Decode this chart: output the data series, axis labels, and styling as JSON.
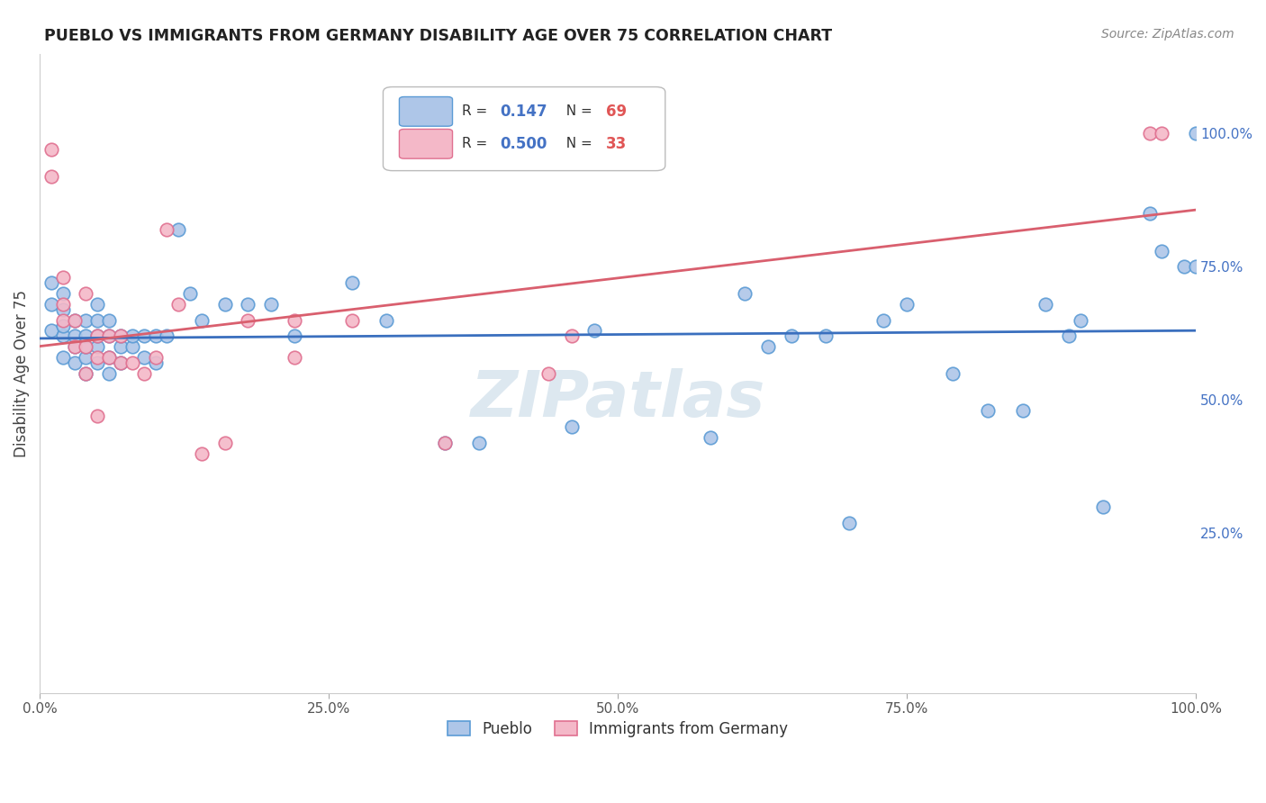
{
  "title": "PUEBLO VS IMMIGRANTS FROM GERMANY DISABILITY AGE OVER 75 CORRELATION CHART",
  "source": "Source: ZipAtlas.com",
  "ylabel": "Disability Age Over 75",
  "xlim": [
    0.0,
    1.0
  ],
  "ylim": [
    -0.05,
    1.15
  ],
  "xtick_labels": [
    "0.0%",
    "25.0%",
    "50.0%",
    "75.0%",
    "100.0%"
  ],
  "xtick_positions": [
    0.0,
    0.25,
    0.5,
    0.75,
    1.0
  ],
  "ytick_right_labels": [
    "25.0%",
    "50.0%",
    "75.0%",
    "100.0%"
  ],
  "ytick_right_positions": [
    0.25,
    0.5,
    0.75,
    1.0
  ],
  "pueblo_color_face": "#aec6e8",
  "pueblo_color_edge": "#5b9bd5",
  "germany_color_face": "#f4b8c8",
  "germany_color_edge": "#e07090",
  "pueblo_line_color": "#3a6fbe",
  "germany_line_color": "#d95f6e",
  "watermark_color": "#dde8f0",
  "pueblo_R": "0.147",
  "pueblo_N": "69",
  "germany_R": "0.500",
  "germany_N": "33",
  "R_label_color": "#4472c4",
  "N_label_color": "#e05555",
  "pueblo_x": [
    0.01,
    0.01,
    0.01,
    0.02,
    0.02,
    0.02,
    0.02,
    0.02,
    0.03,
    0.03,
    0.03,
    0.03,
    0.04,
    0.04,
    0.04,
    0.04,
    0.04,
    0.05,
    0.05,
    0.05,
    0.05,
    0.05,
    0.06,
    0.06,
    0.06,
    0.06,
    0.07,
    0.07,
    0.07,
    0.08,
    0.08,
    0.09,
    0.09,
    0.1,
    0.1,
    0.11,
    0.12,
    0.13,
    0.14,
    0.16,
    0.18,
    0.2,
    0.22,
    0.27,
    0.3,
    0.35,
    0.38,
    0.46,
    0.48,
    0.58,
    0.61,
    0.63,
    0.65,
    0.68,
    0.7,
    0.73,
    0.75,
    0.79,
    0.82,
    0.85,
    0.87,
    0.89,
    0.9,
    0.92,
    0.96,
    0.97,
    0.99,
    1.0,
    1.0
  ],
  "pueblo_y": [
    0.63,
    0.68,
    0.72,
    0.58,
    0.62,
    0.64,
    0.67,
    0.7,
    0.57,
    0.6,
    0.62,
    0.65,
    0.55,
    0.58,
    0.6,
    0.62,
    0.65,
    0.57,
    0.6,
    0.62,
    0.65,
    0.68,
    0.55,
    0.58,
    0.62,
    0.65,
    0.57,
    0.6,
    0.62,
    0.6,
    0.62,
    0.58,
    0.62,
    0.57,
    0.62,
    0.62,
    0.82,
    0.7,
    0.65,
    0.68,
    0.68,
    0.68,
    0.62,
    0.72,
    0.65,
    0.42,
    0.42,
    0.45,
    0.63,
    0.43,
    0.7,
    0.6,
    0.62,
    0.62,
    0.27,
    0.65,
    0.68,
    0.55,
    0.48,
    0.48,
    0.68,
    0.62,
    0.65,
    0.3,
    0.85,
    0.78,
    0.75,
    0.75,
    1.0
  ],
  "germany_x": [
    0.01,
    0.01,
    0.02,
    0.02,
    0.02,
    0.03,
    0.03,
    0.04,
    0.04,
    0.04,
    0.05,
    0.05,
    0.05,
    0.06,
    0.06,
    0.07,
    0.07,
    0.08,
    0.09,
    0.1,
    0.11,
    0.12,
    0.14,
    0.16,
    0.18,
    0.22,
    0.22,
    0.27,
    0.35,
    0.44,
    0.46,
    0.96,
    0.97
  ],
  "germany_y": [
    0.92,
    0.97,
    0.65,
    0.68,
    0.73,
    0.6,
    0.65,
    0.55,
    0.6,
    0.7,
    0.47,
    0.58,
    0.62,
    0.58,
    0.62,
    0.57,
    0.62,
    0.57,
    0.55,
    0.58,
    0.82,
    0.68,
    0.4,
    0.42,
    0.65,
    0.58,
    0.65,
    0.65,
    0.42,
    0.55,
    0.62,
    1.0,
    1.0
  ]
}
